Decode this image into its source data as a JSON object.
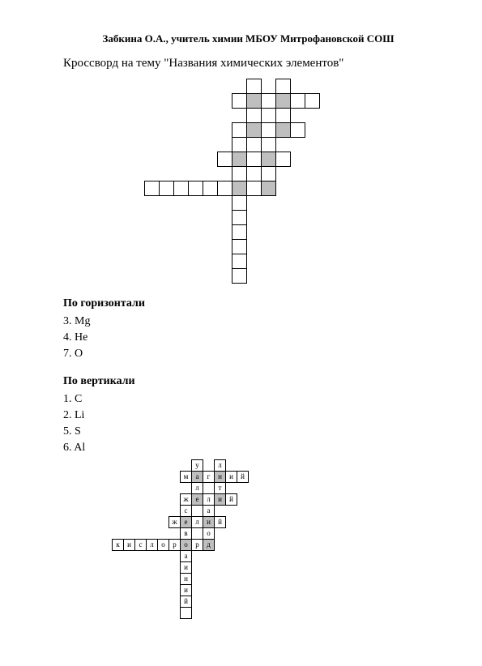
{
  "author_line": "Забкина О.А., учитель химии МБОУ Митрофановской СОШ",
  "title": "Кроссворд на тему \"Названия химических элементов\"",
  "horizontal_title": "По горизонтали",
  "horizontal_clues": [
    {
      "n": "3.",
      "t": "Mg"
    },
    {
      "n": "4.",
      "t": "He"
    },
    {
      "n": "7.",
      "t": "O"
    }
  ],
  "vertical_title": "По вертикали",
  "vertical_clues": [
    {
      "n": "1.",
      "t": "C"
    },
    {
      "n": "2.",
      "t": "Li"
    },
    {
      "n": "5.",
      "t": "S"
    },
    {
      "n": "6.",
      "t": "Al"
    }
  ],
  "grid1": {
    "cell_size": 18,
    "width_cells": 13,
    "height_cells": 14,
    "cells": [
      {
        "r": 0,
        "c": 7,
        "s": false
      },
      {
        "r": 0,
        "c": 9,
        "s": false
      },
      {
        "r": 1,
        "c": 6,
        "s": false
      },
      {
        "r": 1,
        "c": 7,
        "s": true
      },
      {
        "r": 1,
        "c": 8,
        "s": false
      },
      {
        "r": 1,
        "c": 9,
        "s": true
      },
      {
        "r": 1,
        "c": 10,
        "s": false
      },
      {
        "r": 1,
        "c": 11,
        "s": false
      },
      {
        "r": 2,
        "c": 7,
        "s": false
      },
      {
        "r": 2,
        "c": 9,
        "s": false
      },
      {
        "r": 3,
        "c": 6,
        "s": false
      },
      {
        "r": 3,
        "c": 7,
        "s": true
      },
      {
        "r": 3,
        "c": 8,
        "s": false
      },
      {
        "r": 3,
        "c": 9,
        "s": true
      },
      {
        "r": 3,
        "c": 10,
        "s": false
      },
      {
        "r": 4,
        "c": 6,
        "s": false
      },
      {
        "r": 4,
        "c": 8,
        "s": false
      },
      {
        "r": 5,
        "c": 5,
        "s": false
      },
      {
        "r": 5,
        "c": 6,
        "s": true
      },
      {
        "r": 5,
        "c": 7,
        "s": false
      },
      {
        "r": 5,
        "c": 8,
        "s": true
      },
      {
        "r": 5,
        "c": 9,
        "s": false
      },
      {
        "r": 6,
        "c": 6,
        "s": false
      },
      {
        "r": 6,
        "c": 8,
        "s": false
      },
      {
        "r": 7,
        "c": 0,
        "s": false
      },
      {
        "r": 7,
        "c": 1,
        "s": false
      },
      {
        "r": 7,
        "c": 2,
        "s": false
      },
      {
        "r": 7,
        "c": 3,
        "s": false
      },
      {
        "r": 7,
        "c": 4,
        "s": false
      },
      {
        "r": 7,
        "c": 5,
        "s": false
      },
      {
        "r": 7,
        "c": 6,
        "s": true
      },
      {
        "r": 7,
        "c": 7,
        "s": false
      },
      {
        "r": 7,
        "c": 8,
        "s": true
      },
      {
        "r": 8,
        "c": 6,
        "s": false
      },
      {
        "r": 9,
        "c": 6,
        "s": false
      },
      {
        "r": 10,
        "c": 6,
        "s": false
      },
      {
        "r": 11,
        "c": 6,
        "s": false
      },
      {
        "r": 12,
        "c": 6,
        "s": false
      },
      {
        "r": 13,
        "c": 6,
        "s": false
      }
    ]
  },
  "grid2": {
    "cell_size": 14,
    "width_cells": 13,
    "height_cells": 14,
    "cells": [
      {
        "r": 0,
        "c": 7,
        "s": false,
        "ch": "у"
      },
      {
        "r": 0,
        "c": 9,
        "s": false,
        "ch": "л"
      },
      {
        "r": 1,
        "c": 6,
        "s": false,
        "ch": "м"
      },
      {
        "r": 1,
        "c": 7,
        "s": true,
        "ch": "а"
      },
      {
        "r": 1,
        "c": 8,
        "s": false,
        "ch": "г"
      },
      {
        "r": 1,
        "c": 9,
        "s": true,
        "ch": "н"
      },
      {
        "r": 1,
        "c": 10,
        "s": false,
        "ch": "и"
      },
      {
        "r": 1,
        "c": 11,
        "s": false,
        "ch": "й"
      },
      {
        "r": 2,
        "c": 7,
        "s": false,
        "ch": "л"
      },
      {
        "r": 2,
        "c": 9,
        "s": false,
        "ch": "т"
      },
      {
        "r": 3,
        "c": 6,
        "s": false,
        "ch": "ж"
      },
      {
        "r": 3,
        "c": 7,
        "s": true,
        "ch": "е"
      },
      {
        "r": 3,
        "c": 8,
        "s": false,
        "ch": "л"
      },
      {
        "r": 3,
        "c": 9,
        "s": true,
        "ch": "и"
      },
      {
        "r": 3,
        "c": 10,
        "s": false,
        "ch": "й"
      },
      {
        "r": 4,
        "c": 6,
        "s": false,
        "ch": "с"
      },
      {
        "r": 4,
        "c": 8,
        "s": false,
        "ch": "а"
      },
      {
        "r": 5,
        "c": 5,
        "s": false,
        "ch": "ж"
      },
      {
        "r": 5,
        "c": 6,
        "s": true,
        "ch": "е"
      },
      {
        "r": 5,
        "c": 7,
        "s": false,
        "ch": "л"
      },
      {
        "r": 5,
        "c": 8,
        "s": true,
        "ch": "и"
      },
      {
        "r": 5,
        "c": 9,
        "s": false,
        "ch": "й"
      },
      {
        "r": 6,
        "c": 6,
        "s": false,
        "ch": "в"
      },
      {
        "r": 6,
        "c": 8,
        "s": false,
        "ch": "о"
      },
      {
        "r": 7,
        "c": 0,
        "s": false,
        "ch": "к"
      },
      {
        "r": 7,
        "c": 1,
        "s": false,
        "ch": "и"
      },
      {
        "r": 7,
        "c": 2,
        "s": false,
        "ch": "с"
      },
      {
        "r": 7,
        "c": 3,
        "s": false,
        "ch": "л"
      },
      {
        "r": 7,
        "c": 4,
        "s": false,
        "ch": "о"
      },
      {
        "r": 7,
        "c": 5,
        "s": false,
        "ch": "р"
      },
      {
        "r": 7,
        "c": 6,
        "s": true,
        "ch": "о"
      },
      {
        "r": 7,
        "c": 7,
        "s": false,
        "ch": "р"
      },
      {
        "r": 7,
        "c": 8,
        "s": true,
        "ch": "д"
      },
      {
        "r": 8,
        "c": 6,
        "s": false,
        "ch": "а"
      },
      {
        "r": 9,
        "c": 6,
        "s": false,
        "ch": "и"
      },
      {
        "r": 10,
        "c": 6,
        "s": false,
        "ch": "н"
      },
      {
        "r": 11,
        "c": 6,
        "s": false,
        "ch": "и"
      },
      {
        "r": 12,
        "c": 6,
        "s": false,
        "ch": "й"
      },
      {
        "r": 13,
        "c": 6,
        "s": false,
        "ch": ""
      }
    ]
  }
}
